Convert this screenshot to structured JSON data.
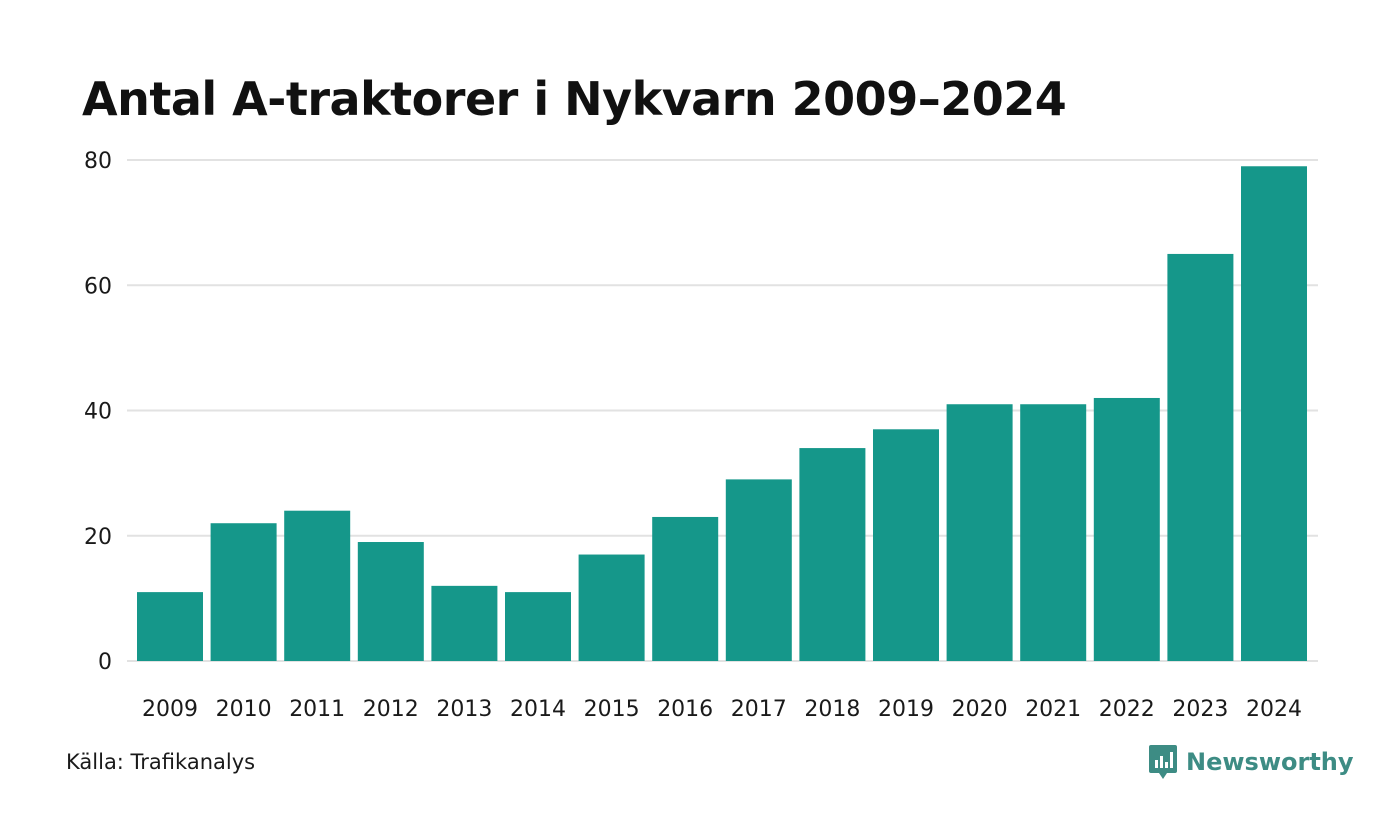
{
  "title": "Antal A-traktorer i Nykvarn 2009–2024",
  "source": "Källa: Trafikanalys",
  "brand": {
    "name": "Newsworthy",
    "icon": "newsworthy-logo-icon",
    "color": "#3d8c84"
  },
  "colors": {
    "bar": "#15978a",
    "grid": "#e2e2e2",
    "text": "#1a1a1a"
  },
  "chart_data": {
    "type": "bar",
    "title": "Antal A-traktorer i Nykvarn 2009–2024",
    "xlabel": "",
    "ylabel": "",
    "categories": [
      "2009",
      "2010",
      "2011",
      "2012",
      "2013",
      "2014",
      "2015",
      "2016",
      "2017",
      "2018",
      "2019",
      "2020",
      "2021",
      "2022",
      "2023",
      "2024"
    ],
    "values": [
      11,
      22,
      24,
      19,
      12,
      11,
      17,
      23,
      29,
      34,
      37,
      41,
      41,
      42,
      65,
      79
    ],
    "ylim": [
      0,
      80
    ],
    "yticks": [
      0,
      20,
      40,
      60,
      80
    ],
    "grid": true,
    "legend": "none"
  }
}
